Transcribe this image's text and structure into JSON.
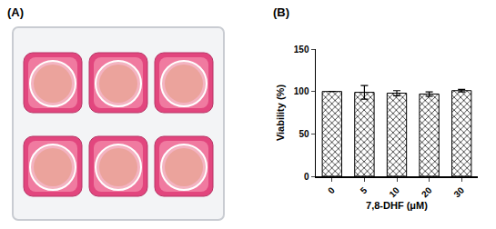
{
  "panel_labels": [
    "(A)",
    "(B)"
  ],
  "chart_data": {
    "type": "bar",
    "categories": [
      "0",
      "5",
      "10",
      "20",
      "30"
    ],
    "values": [
      100,
      99,
      98,
      97,
      101
    ],
    "errors": [
      0,
      8,
      3,
      2.5,
      1.5
    ],
    "x_label": "7,8-DHF (μM)",
    "y_label": "Viability (%)",
    "ylim": [
      0,
      150
    ],
    "yticks": [
      0,
      50,
      100,
      150
    ],
    "color": "#000000",
    "grid": false
  }
}
